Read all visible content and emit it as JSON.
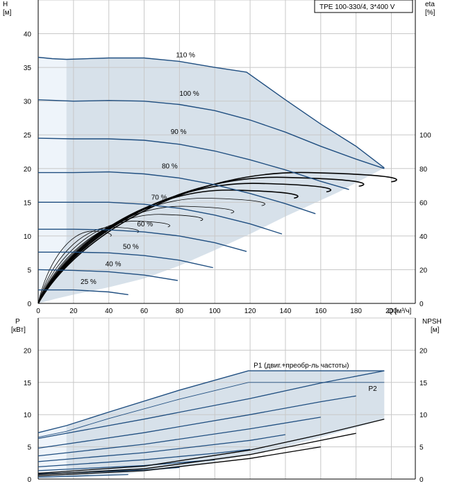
{
  "pump_label": "TPE 100-330/4, 3*400 V",
  "colors": {
    "area": "#d7e1ea",
    "area_light": "#eef4fa",
    "curve": "#1f4e80",
    "efficiency": "#000000",
    "grid": "#c8c8c8",
    "p1_label": "#2b5e99"
  },
  "chart_data": [
    {
      "type": "line",
      "title": "",
      "xlabel": "Q [м³/ч]",
      "ylabel": "H\n[м]",
      "ylabel_right": "eta\n[%]",
      "xlim": [
        0,
        200
      ],
      "ylim": [
        0,
        45
      ],
      "ylim_right": [
        0,
        180
      ],
      "x_ticks": [
        "0",
        "20",
        "40",
        "60",
        "80",
        "100",
        "120",
        "140",
        "160",
        "180",
        "200"
      ],
      "y_ticks": [
        "0",
        "5",
        "10",
        "15",
        "20",
        "25",
        "30",
        "35",
        "40"
      ],
      "y_ticks_right": [
        "0",
        "20",
        "40",
        "60",
        "80",
        "100"
      ],
      "grid": true,
      "speed_series": [
        {
          "name": "110 %",
          "label_at": [
            78,
            36.3
          ],
          "x": [
            0,
            8,
            16,
            40,
            60,
            80,
            100,
            118,
            140,
            160,
            180,
            196
          ],
          "y": [
            36.5,
            36.3,
            36.2,
            36.4,
            36.4,
            35.9,
            35.0,
            34.3,
            30.2,
            26.6,
            23.3,
            20.1
          ]
        },
        {
          "name": "100 %",
          "label_at": [
            80,
            30.6
          ],
          "x": [
            0,
            20,
            40,
            60,
            80,
            100,
            120,
            140,
            160,
            180,
            196
          ],
          "y": [
            30.2,
            30.0,
            30.1,
            30.0,
            29.5,
            28.6,
            27.2,
            25.4,
            23.3,
            21.4,
            20.0
          ]
        },
        {
          "name": "90 %",
          "label_at": [
            75,
            24.9
          ],
          "x": [
            0,
            20,
            40,
            60,
            80,
            100,
            120,
            140,
            160,
            176
          ],
          "y": [
            24.5,
            24.4,
            24.4,
            24.2,
            23.6,
            22.6,
            21.3,
            19.8,
            18.1,
            16.9
          ]
        },
        {
          "name": "80 %",
          "label_at": [
            70,
            19.8
          ],
          "x": [
            0,
            20,
            40,
            60,
            80,
            100,
            120,
            140,
            157
          ],
          "y": [
            19.4,
            19.4,
            19.5,
            19.2,
            18.6,
            17.6,
            16.3,
            14.8,
            13.3
          ]
        },
        {
          "name": "70 %",
          "label_at": [
            64,
            15.2
          ],
          "x": [
            0,
            20,
            40,
            60,
            80,
            100,
            120,
            138
          ],
          "y": [
            15.0,
            15.0,
            15.0,
            14.7,
            14.1,
            13.1,
            11.8,
            10.3
          ]
        },
        {
          "name": "60 %",
          "label_at": [
            56,
            11.2
          ],
          "x": [
            0,
            20,
            40,
            60,
            80,
            100,
            118
          ],
          "y": [
            11.0,
            11.0,
            10.9,
            10.6,
            10.0,
            9.0,
            7.7
          ]
        },
        {
          "name": "50 %",
          "label_at": [
            48,
            7.9
          ],
          "x": [
            0,
            20,
            40,
            60,
            80,
            99
          ],
          "y": [
            7.6,
            7.6,
            7.5,
            7.1,
            6.4,
            5.3
          ]
        },
        {
          "name": "40 %",
          "label_at": [
            38,
            5.3
          ],
          "x": [
            0,
            20,
            40,
            60,
            79
          ],
          "y": [
            5.0,
            4.9,
            4.7,
            4.2,
            3.4
          ]
        },
        {
          "name": "25 %",
          "label_at": [
            24,
            2.7
          ],
          "x": [
            0,
            20,
            40,
            51
          ],
          "y": [
            2.0,
            2.0,
            1.7,
            1.3
          ]
        }
      ],
      "operating_area_H": {
        "x": [
          0,
          0,
          8,
          16,
          40,
          60,
          80,
          100,
          118,
          140,
          160,
          180,
          196,
          170,
          140,
          120,
          100,
          80,
          60,
          40,
          20,
          10,
          0
        ],
        "y": [
          0,
          36.5,
          36.3,
          36.2,
          36.4,
          36.4,
          35.9,
          35.0,
          34.3,
          30.2,
          26.6,
          23.3,
          20.1,
          16.5,
          12.9,
          10.3,
          7.9,
          5.6,
          3.7,
          2.4,
          1.3,
          0.7,
          0
        ]
      },
      "efficiency_series": [
        {
          "peak": [
            196,
            19.4
          ]
        },
        {
          "peak": [
            178,
            18.7
          ]
        },
        {
          "peak": [
            160,
            17.8
          ]
        },
        {
          "peak": [
            142,
            16.8
          ]
        },
        {
          "peak": [
            124,
            15.6
          ]
        },
        {
          "peak": [
            107,
            14.4
          ]
        },
        {
          "peak": [
            90,
            13.2
          ]
        },
        {
          "peak": [
            72,
            12.2
          ]
        },
        {
          "peak": [
            55,
            11.3
          ]
        },
        {
          "peak": [
            40,
            10.7
          ]
        }
      ]
    },
    {
      "type": "line",
      "title": "",
      "xlabel": "",
      "ylabel": "P\n[кВт]",
      "ylabel_right": "NPSH\n[м]",
      "xlim": [
        0,
        200
      ],
      "ylim": [
        0,
        25
      ],
      "ylim_right": [
        0,
        25
      ],
      "y_ticks": [
        "0",
        "5",
        "10",
        "15",
        "20"
      ],
      "y_ticks_right": [
        "0",
        "5",
        "10",
        "15",
        "20"
      ],
      "grid": true,
      "labels": {
        "p1": "P1 (двиг.+преобр-ль частоты)",
        "p2": "P2"
      },
      "p1_envelope": {
        "x": [
          0,
          16,
          40,
          80,
          119,
          140,
          160,
          180,
          196
        ],
        "y": [
          7.2,
          8.3,
          10.4,
          13.8,
          16.8,
          16.8,
          16.8,
          16.8,
          16.8
        ]
      },
      "p2_envelope": {
        "x": [
          0,
          16,
          40,
          80,
          119,
          140,
          160,
          180,
          196
        ],
        "y": [
          6.5,
          7.4,
          9.4,
          12.4,
          15.0,
          15.0,
          15.0,
          15.0,
          15.0
        ]
      },
      "power_series": [
        {
          "x": [
            0,
            60,
            120,
            160,
            196
          ],
          "y": [
            6.3,
            9.3,
            12.5,
            14.9,
            16.8
          ]
        },
        {
          "x": [
            0,
            60,
            120,
            160,
            180
          ],
          "y": [
            4.8,
            7.2,
            10.0,
            12.0,
            12.9
          ]
        },
        {
          "x": [
            0,
            60,
            120,
            160
          ],
          "y": [
            3.6,
            5.4,
            7.8,
            9.6
          ]
        },
        {
          "x": [
            0,
            60,
            120,
            140
          ],
          "y": [
            2.7,
            4.1,
            6.0,
            6.9
          ]
        },
        {
          "x": [
            0,
            60,
            100,
            120
          ],
          "y": [
            1.9,
            3.0,
            4.0,
            4.6
          ]
        },
        {
          "x": [
            0,
            60,
            100
          ],
          "y": [
            1.3,
            2.1,
            3.0
          ]
        },
        {
          "x": [
            0,
            60,
            80
          ],
          "y": [
            0.8,
            1.4,
            1.8
          ]
        },
        {
          "x": [
            0,
            40,
            51
          ],
          "y": [
            0.3,
            0.6,
            0.7
          ]
        }
      ],
      "npsh_series": [
        {
          "x": [
            0,
            60,
            120,
            160,
            196
          ],
          "y": [
            0.9,
            2.0,
            4.5,
            6.9,
            9.3
          ]
        },
        {
          "x": [
            0,
            60,
            120,
            180
          ],
          "y": [
            0.7,
            1.6,
            3.8,
            7.1
          ]
        },
        {
          "x": [
            0,
            60,
            120,
            160
          ],
          "y": [
            0.5,
            1.3,
            3.2,
            5.0
          ]
        }
      ]
    }
  ]
}
